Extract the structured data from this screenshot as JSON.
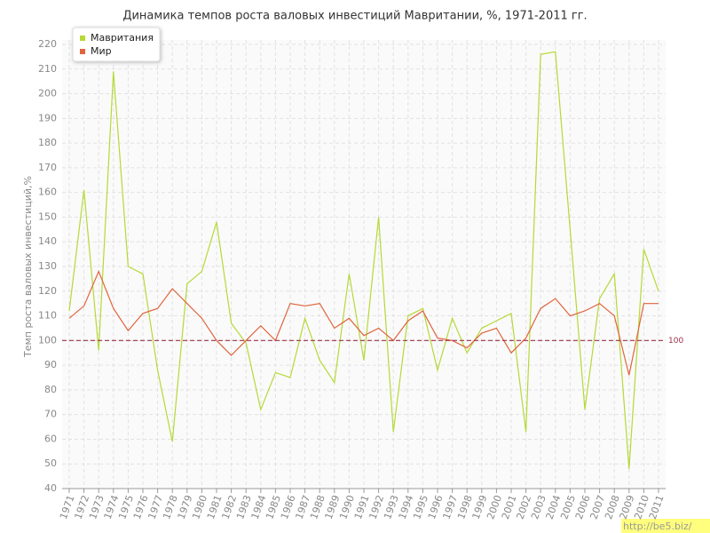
{
  "chart_data": {
    "type": "line",
    "title": "Динамика темпов роста валовых инвестиций Мавритании, %, 1971-2011 гг.",
    "y_label": "Темп роста валовых инвестиций,%",
    "categories": [
      "1971",
      "1972",
      "1973",
      "1974",
      "1975",
      "1976",
      "1977",
      "1978",
      "1979",
      "1980",
      "1981",
      "1982",
      "1983",
      "1984",
      "1985",
      "1986",
      "1987",
      "1988",
      "1989",
      "1990",
      "1991",
      "1992",
      "1993",
      "1994",
      "1995",
      "1996",
      "1997",
      "1998",
      "1999",
      "2000",
      "2001",
      "2002",
      "2003",
      "2004",
      "2005",
      "2006",
      "2007",
      "2008",
      "2009",
      "2010",
      "2011"
    ],
    "series": [
      {
        "name": "Мавритания",
        "color": "#b5d936",
        "values": [
          112,
          161,
          96,
          209,
          130,
          127,
          88,
          59,
          123,
          128,
          148,
          107,
          99,
          72,
          87,
          85,
          109,
          92,
          83,
          127,
          92,
          150,
          63,
          110,
          113,
          88,
          109,
          95,
          105,
          108,
          111,
          63,
          216,
          217,
          145,
          72,
          117,
          127,
          48,
          137,
          120
        ]
      },
      {
        "name": "Мир",
        "color": "#e0643c",
        "values": [
          109,
          114,
          128,
          113,
          104,
          111,
          113,
          121,
          115,
          109,
          100,
          94,
          100,
          106,
          100,
          115,
          114,
          115,
          105,
          109,
          102,
          105,
          100,
          108,
          112,
          101,
          100,
          97,
          103,
          105,
          95,
          101,
          113,
          117,
          110,
          112,
          115,
          110,
          86,
          115,
          115
        ]
      }
    ],
    "ylim": [
      40,
      220
    ],
    "yticks": [
      40,
      50,
      60,
      70,
      80,
      90,
      100,
      110,
      120,
      130,
      140,
      150,
      160,
      170,
      180,
      190,
      200,
      210,
      220
    ],
    "reference_line": 100,
    "reference_color": "#a0304a",
    "grid": true,
    "legend": "top-left",
    "watermark": "http://be5.biz/"
  }
}
